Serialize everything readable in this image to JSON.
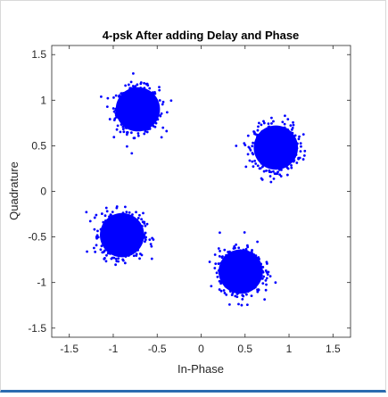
{
  "chart_data": {
    "type": "scatter",
    "title": "4-psk After adding Delay and Phase",
    "xlabel": "In-Phase",
    "ylabel": "Quadrature",
    "xlim": [
      -1.7,
      1.7
    ],
    "ylim": [
      -1.6,
      1.6
    ],
    "xticks": [
      -1.5,
      -1,
      -0.5,
      0,
      0.5,
      1,
      1.5
    ],
    "yticks": [
      -1.5,
      -1,
      -0.5,
      0,
      0.5,
      1,
      1.5
    ],
    "xtick_labels": [
      "-1.5",
      "-1",
      "-0.5",
      "0",
      "0.5",
      "1",
      "1.5"
    ],
    "ytick_labels": [
      "-1.5",
      "-1",
      "-0.5",
      "0",
      "0.5",
      "1",
      "1.5"
    ],
    "grid": false,
    "marker_color": "#0000ff",
    "clusters": [
      {
        "center": [
          -0.72,
          0.9
        ],
        "spread": 0.12
      },
      {
        "center": [
          0.85,
          0.48
        ],
        "spread": 0.12
      },
      {
        "center": [
          -0.9,
          -0.48
        ],
        "spread": 0.12
      },
      {
        "center": [
          0.45,
          -0.88
        ],
        "spread": 0.12
      }
    ]
  }
}
